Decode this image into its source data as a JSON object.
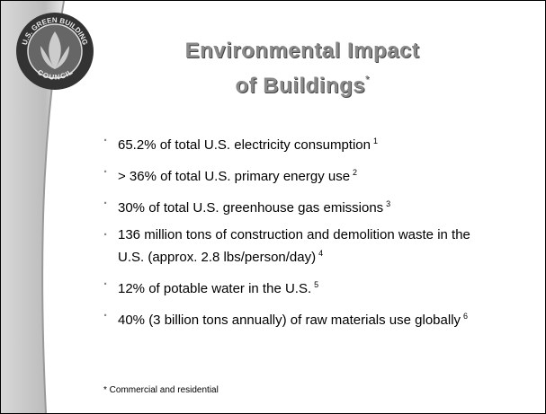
{
  "logo": {
    "top": "U.S. GREEN BUILDING",
    "bottom": "COUNCIL"
  },
  "title": {
    "lines": [
      "Environmental Impact",
      "of Buildings"
    ],
    "mark": "*"
  },
  "bullets": [
    {
      "text": "65.2% of total U.S. electricity consumption",
      "note": "1"
    },
    {
      "text": "> 36% of total U.S. primary energy use",
      "note": "2"
    },
    {
      "text": "30% of total U.S. greenhouse gas emissions",
      "note": "3"
    },
    {
      "text": "136 million tons of construction and demolition waste in the U.S. (approx. 2.8 lbs/person/day)",
      "note": "4"
    },
    {
      "text": "12% of potable water in the U.S.",
      "note": "5"
    },
    {
      "text": "40% (3 billion tons annually) of raw materials use globally",
      "note": "6"
    }
  ],
  "footnote": "* Commercial and residential"
}
